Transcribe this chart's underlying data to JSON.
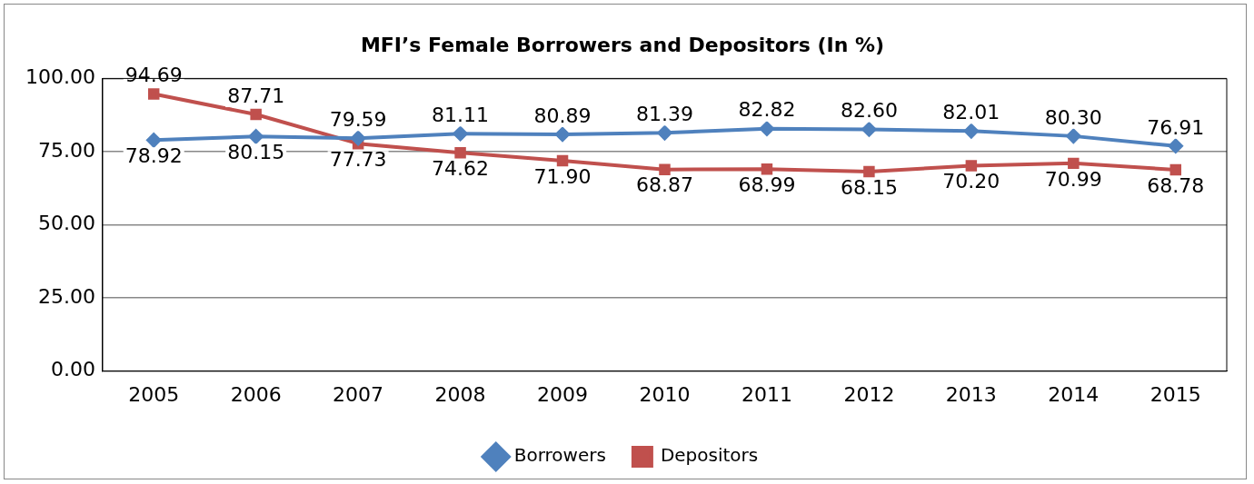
{
  "chart_data": {
    "type": "line",
    "title": "MFI’s Female Borrowers and Depositors (In %)",
    "categories": [
      "2005",
      "2006",
      "2007",
      "2008",
      "2009",
      "2010",
      "2011",
      "2012",
      "2013",
      "2014",
      "2015"
    ],
    "series": [
      {
        "name": "Borrowers",
        "color": "#4f81bd",
        "marker": "diamond",
        "values": [
          78.92,
          80.15,
          79.59,
          81.11,
          80.89,
          81.39,
          82.82,
          82.6,
          82.01,
          80.3,
          76.91
        ],
        "value_labels": [
          "78.92",
          "80.15",
          "79.59",
          "81.11",
          "80.89",
          "81.39",
          "82.82",
          "82.60",
          "82.01",
          "80.30",
          "76.91"
        ]
      },
      {
        "name": "Depositors",
        "color": "#c0504d",
        "marker": "square",
        "values": [
          94.69,
          87.71,
          77.73,
          74.62,
          71.9,
          68.87,
          68.99,
          68.15,
          70.2,
          70.99,
          68.78
        ],
        "value_labels": [
          "94.69",
          "87.71",
          "77.73",
          "74.62",
          "71.90",
          "68.87",
          "68.99",
          "68.15",
          "70.20",
          "70.99",
          "68.78"
        ]
      }
    ],
    "ylim": [
      0,
      100
    ],
    "yticks": [
      {
        "value": 0,
        "label": "0.00"
      },
      {
        "value": 25,
        "label": "25.00"
      },
      {
        "value": 50,
        "label": "50.00"
      },
      {
        "value": 75,
        "label": "75.00"
      },
      {
        "value": 100,
        "label": "100.00"
      }
    ],
    "grid": "y",
    "legend": "bottom"
  }
}
